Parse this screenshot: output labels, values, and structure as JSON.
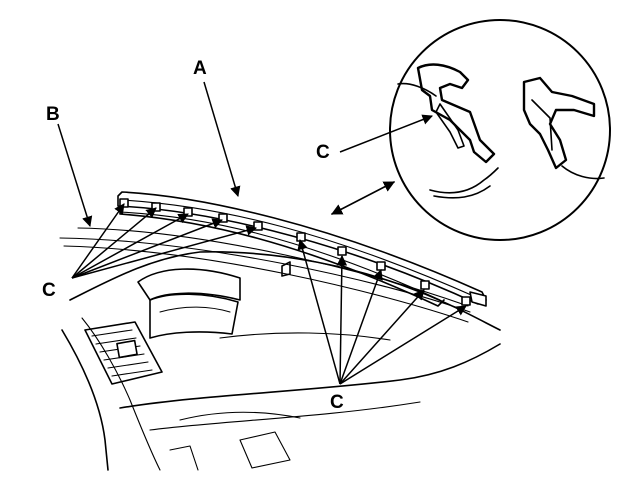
{
  "labels": {
    "a": "A",
    "b": "B",
    "c_left": "C",
    "c_right": "C",
    "c_detail": "C"
  },
  "parts": [
    "trim-strip",
    "seal-strip",
    "clips",
    "dashboard",
    "detail-view"
  ]
}
